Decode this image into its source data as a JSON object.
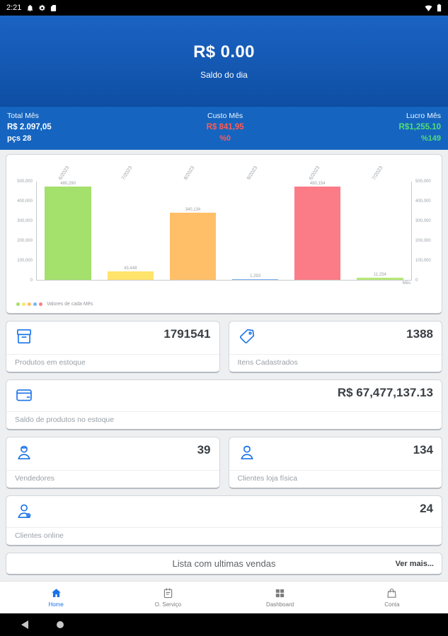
{
  "status_bar": {
    "time": "2:21",
    "icons_left": [
      "bell-icon",
      "gear-icon",
      "storage-icon"
    ],
    "icons_right": [
      "wifi-icon",
      "battery-icon"
    ]
  },
  "header": {
    "balance": "R$ 0.00",
    "subtitle": "Saldo do dia"
  },
  "stats": [
    {
      "label": "Total Mês",
      "value": "R$ 2.097,05",
      "extra": "pçs 28",
      "color": "#ffffff",
      "align": "left"
    },
    {
      "label": "Custo Mês",
      "value": "R$ 841,95",
      "extra": "%0",
      "color": "#ff5a52",
      "align": "center"
    },
    {
      "label": "Lucro Mês",
      "value": "R$1,255.10",
      "extra": "%149",
      "color": "#52de72",
      "align": "right"
    }
  ],
  "chart_data": {
    "type": "bar",
    "categories": [
      "6/2023",
      "7/2023",
      "8/2023",
      "9/2023",
      "6/2023",
      "7/2023"
    ],
    "values": [
      480290,
      43448,
      340134,
      1293,
      480154,
      11254
    ],
    "value_labels": [
      "480,290",
      "43,448",
      "340,134",
      "1,293",
      "480,154",
      "11,254"
    ],
    "bar_colors": [
      "#a3e06c",
      "#ffe36b",
      "#ffbf69",
      "#7fb3f7",
      "#fb7c86",
      "#b5e877"
    ],
    "ylim": [
      0,
      500000
    ],
    "yticks": [
      "500,000",
      "400,000",
      "300,000",
      "200,000",
      "100,000",
      "0"
    ],
    "legend": {
      "label": "Valores de cada Mês",
      "colors": [
        "#a3e06c",
        "#ffe36b",
        "#ffbf69",
        "#7fb3f7",
        "#fb7c86"
      ]
    },
    "axis_note": "Mês",
    "title": "",
    "grid": false,
    "legend_position": "bottom-left"
  },
  "cards": [
    {
      "icon": "package-icon",
      "value": "1791541",
      "label": "Produtos em estoque",
      "span": 1
    },
    {
      "icon": "tag-icon",
      "value": "1388",
      "label": "Itens Cadastrados",
      "span": 1
    },
    {
      "icon": "wallet-icon",
      "value": "R$ 67,477,137.13",
      "label": "Saldo de produtos no estoque",
      "span": 2
    },
    {
      "icon": "seller-icon",
      "value": "39",
      "label": "Vendedores",
      "span": 1
    },
    {
      "icon": "customer-icon",
      "value": "134",
      "label": "Clientes loja física",
      "span": 1
    },
    {
      "icon": "online-customer-icon",
      "value": "24",
      "label": "Clientes online",
      "span": 2
    }
  ],
  "sales_list": {
    "title": "Lista com  ultimas vendas",
    "ver_mais": "Ver mais..."
  },
  "bottom_nav": {
    "items": [
      {
        "label": "Home",
        "icon": "home-icon",
        "active": true
      },
      {
        "label": "O. Serviço",
        "icon": "service-icon",
        "active": false
      },
      {
        "label": "Dashboard",
        "icon": "dashboard-icon",
        "active": false
      },
      {
        "label": "Conta",
        "icon": "account-icon",
        "active": false
      }
    ]
  },
  "system_bar": {
    "icons": [
      "back-icon",
      "home-circle-icon"
    ]
  },
  "colors": {
    "accent": "#1a73e8",
    "positive": "#52de72",
    "negative": "#ff5a52",
    "header_blue_top": "#1b63c3",
    "header_blue_bottom": "#0e4fa4",
    "strip_blue": "#1565c0"
  }
}
